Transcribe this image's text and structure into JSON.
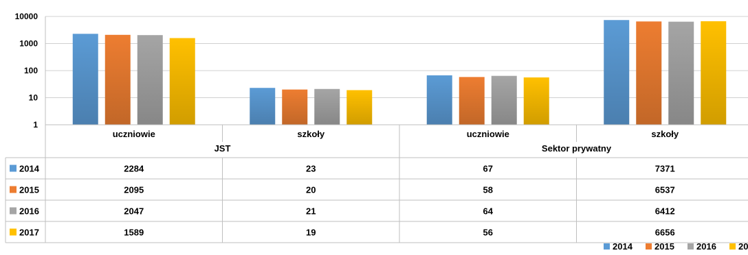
{
  "chart_data": {
    "type": "bar",
    "yscale": "log",
    "ylim": [
      1,
      10000
    ],
    "y_ticks": [
      "1",
      "10",
      "100",
      "1000",
      "10000"
    ],
    "grid": true,
    "legend_position": "bottom-right",
    "groups": [
      "JST",
      "Sektor prywatny"
    ],
    "categories": [
      "uczniowie",
      "szkoły",
      "uczniowie",
      "szkoły"
    ],
    "series": [
      {
        "name": "2014",
        "color": "#5b9bd5",
        "values": [
          2284,
          23,
          67,
          7371
        ],
        "labels": [
          "2284",
          "23",
          "67",
          "7371"
        ]
      },
      {
        "name": "2015",
        "color": "#ed7d31",
        "values": [
          2095,
          20,
          58,
          6537
        ],
        "labels": [
          "2095",
          "20",
          "58",
          "6537"
        ]
      },
      {
        "name": "2016",
        "color": "#a5a5a5",
        "values": [
          2047,
          21,
          64,
          6412
        ],
        "labels": [
          "2047",
          "21",
          "64",
          "6412"
        ]
      },
      {
        "name": "2017",
        "color": "#ffc000",
        "values": [
          1589,
          19,
          56,
          6656
        ],
        "labels": [
          "1589",
          "19",
          "56",
          "6656"
        ]
      }
    ]
  }
}
